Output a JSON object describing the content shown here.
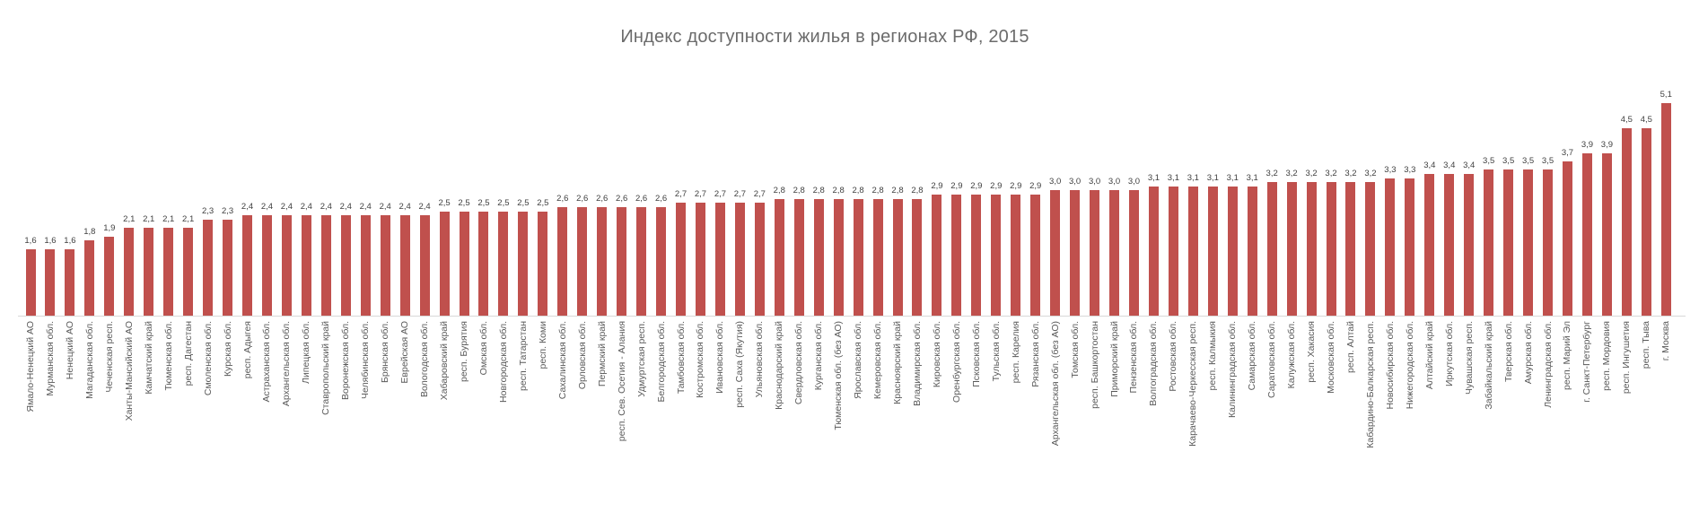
{
  "title": "Индекс доступности жилья в регионах РФ, 2015",
  "chart_data": {
    "type": "bar",
    "title": "Индекс доступности жилья в регионах РФ, 2015",
    "xlabel": "",
    "ylabel": "",
    "ylim": [
      0,
      5.5
    ],
    "grid": "off",
    "legend": "none",
    "bar_color": "#c0504d",
    "axis_line_color": "#d9d9d9",
    "title_color": "#6b6b6b",
    "value_label_color": "#404040",
    "tick_label_color": "#595959",
    "x_tick_label_rotation": -90,
    "decimal_separator": ",",
    "categories": [
      "Ямало-Ненецкий АО",
      "Мурманская обл.",
      "Ненецкий АО",
      "Магаданская обл.",
      "Чеченская респ.",
      "Ханты-Мансийский АО",
      "Камчатский край",
      "Тюменская обл.",
      "респ. Дагестан",
      "Смоленская обл.",
      "Курская обл.",
      "респ. Адыгея",
      "Астраханская обл.",
      "Архангельская обл.",
      "Липецкая обл.",
      "Ставропольский край",
      "Воронежская обл.",
      "Челябинская обл.",
      "Брянская обл.",
      "Еврейская АО",
      "Вологодская обл.",
      "Хабаровский край",
      "респ. Бурятия",
      "Омская обл.",
      "Новгородская обл.",
      "респ. Татарстан",
      "респ. Коми",
      "Сахалинская обл.",
      "Орловская обл.",
      "Пермский край",
      "респ. Сев. Осетия - Алания",
      "Удмуртская респ.",
      "Белгородская обл.",
      "Тамбовская обл.",
      "Костромская обл.",
      "Ивановская обл.",
      "респ. Саха (Якутия)",
      "Ульяновская обл.",
      "Краснодарский край",
      "Свердловская обл.",
      "Курганская обл.",
      "Тюменская обл. (без АО)",
      "Ярославская обл.",
      "Кемеровская обл.",
      "Красноярский край",
      "Владимирская обл.",
      "Кировская обл.",
      "Оренбургская обл.",
      "Псковская обл.",
      "Тульская обл.",
      "респ. Карелия",
      "Рязанская обл.",
      "Архангельская обл. (без АО)",
      "Томская обл.",
      "респ. Башкортостан",
      "Приморский край",
      "Пензенская обл.",
      "Волгоградская обл.",
      "Ростовская обл.",
      "Карачаево-Черкесская респ.",
      "респ. Калмыкия",
      "Калининградская обл.",
      "Самарская обл.",
      "Саратовская обл.",
      "Калужская обл.",
      "респ. Хакасия",
      "Московская обл.",
      "респ. Алтай",
      "Кабардино-Балкарская респ.",
      "Новосибирская обл.",
      "Нижегородская обл.",
      "Алтайский край",
      "Иркутская обл.",
      "Чувашская респ.",
      "Забайкальский край",
      "Тверская обл.",
      "Амурская обл.",
      "Ленинградская обл.",
      "респ. Марий Эл",
      "г. Санкт-Петербург",
      "респ. Мордовия",
      "респ. Ингушетия",
      "респ. Тыва",
      "г. Москва"
    ],
    "values": [
      1.6,
      1.6,
      1.6,
      1.8,
      1.9,
      2.1,
      2.1,
      2.1,
      2.1,
      2.3,
      2.3,
      2.4,
      2.4,
      2.4,
      2.4,
      2.4,
      2.4,
      2.4,
      2.4,
      2.4,
      2.4,
      2.5,
      2.5,
      2.5,
      2.5,
      2.5,
      2.5,
      2.6,
      2.6,
      2.6,
      2.6,
      2.6,
      2.6,
      2.7,
      2.7,
      2.7,
      2.7,
      2.7,
      2.8,
      2.8,
      2.8,
      2.8,
      2.8,
      2.8,
      2.8,
      2.8,
      2.9,
      2.9,
      2.9,
      2.9,
      2.9,
      2.9,
      3.0,
      3.0,
      3.0,
      3.0,
      3.0,
      3.1,
      3.1,
      3.1,
      3.1,
      3.1,
      3.1,
      3.2,
      3.2,
      3.2,
      3.2,
      3.2,
      3.2,
      3.3,
      3.3,
      3.4,
      3.4,
      3.4,
      3.5,
      3.5,
      3.5,
      3.5,
      3.7,
      3.9,
      3.9,
      4.5,
      4.5,
      5.1
    ]
  }
}
